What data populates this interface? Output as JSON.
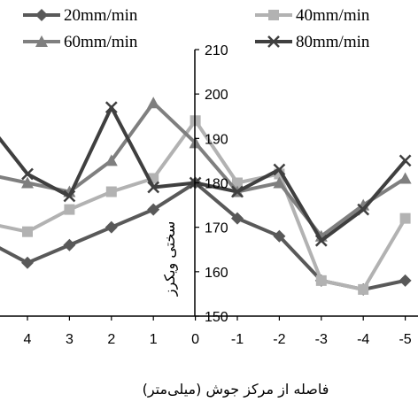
{
  "chart_data": {
    "type": "line",
    "xlabel": "فاصله از مرکز جوش (میلی‌متر)",
    "ylabel": "سختی ویکرز",
    "x": [
      4,
      3,
      2,
      1,
      0,
      -1,
      -2,
      -3,
      -4,
      -5
    ],
    "x_tick_labels": [
      "4",
      "3",
      "2",
      "1",
      "0",
      "-1",
      "-2",
      "-3",
      "-4",
      "-5"
    ],
    "ylim": [
      150,
      210
    ],
    "y_ticks": [
      150,
      160,
      170,
      180,
      190,
      200,
      210
    ],
    "x_reversed": true,
    "grid": false,
    "legend_position": "top",
    "series": [
      {
        "name": "20mm/min",
        "marker": "diamond",
        "color": "#595959",
        "lead": 167,
        "values": [
          162,
          166,
          170,
          174,
          180,
          172,
          168,
          158,
          156,
          158
        ]
      },
      {
        "name": "40mm/min",
        "marker": "square",
        "color": "#b2b2b2",
        "lead": 171,
        "values": [
          169,
          174,
          178,
          181,
          194,
          180,
          182,
          158,
          156,
          172
        ]
      },
      {
        "name": "60mm/min",
        "marker": "triangle",
        "color": "#7f7f7f",
        "lead": 182,
        "values": [
          180,
          178,
          185,
          198,
          189,
          178,
          180,
          168,
          175,
          181
        ]
      },
      {
        "name": "80mm/min",
        "marker": "x",
        "color": "#3f3f3f",
        "lead": 194,
        "values": [
          182,
          177,
          197,
          179,
          180,
          178,
          183,
          167,
          174,
          185
        ]
      }
    ]
  }
}
